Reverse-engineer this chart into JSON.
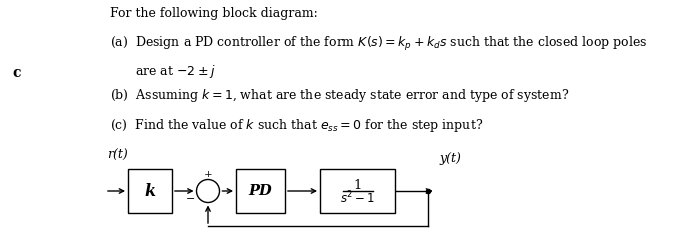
{
  "background_color": "#ffffff",
  "text_color": "#000000",
  "label_c": "c",
  "header_text": "For the following block diagram:",
  "block_k_label": "k",
  "block_pd_label": "PD",
  "block_tf_num": "1",
  "block_tf_den": "$s^2-1$",
  "input_label": "r(t)",
  "output_label": "y(t)",
  "font_size_main": 9.0,
  "font_size_block": 9.5,
  "lw": 1.0
}
